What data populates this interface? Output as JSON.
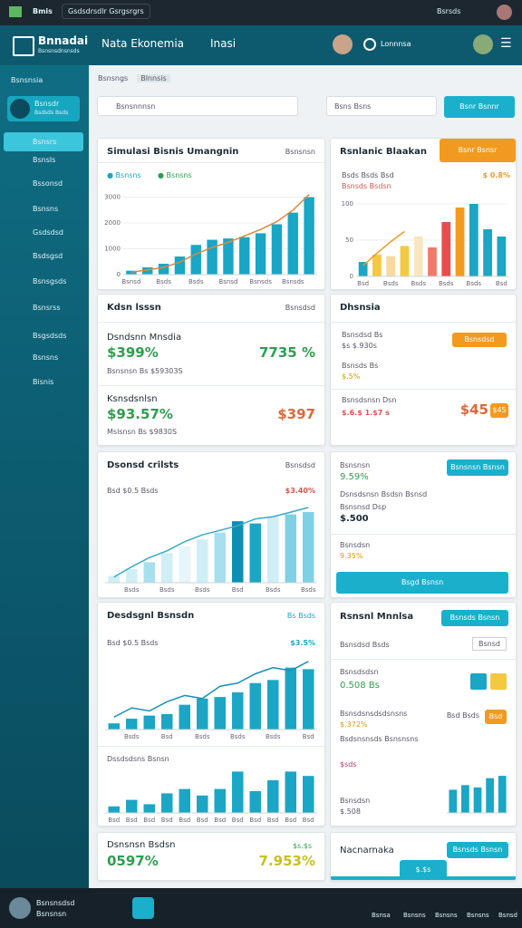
{
  "status_bar": {
    "app": "Bmis",
    "tab": "Gsdsdrsdlr Gsrgsrgrs",
    "user": "Bsrsds"
  },
  "header": {
    "logo_line1": "Bnnadai",
    "logo_line2": "Bsnsnsdnsnsds",
    "title": "Nata Ekonemia",
    "subtitle": "Inasi",
    "search_label": "Lonnnsa"
  },
  "sidebar": {
    "menu_title": "Bsnsnsia",
    "profile_name": "Bsnsdr",
    "profile_sub": "Bsdsds Bsds",
    "items": [
      "Bsnsrs",
      "Bsnsls",
      "Bssonsd",
      "Bsnsns",
      "Gsdsdsd",
      "Bsdsgsd",
      "Bsnsgsds",
      "Bsnsrss",
      "Bsgsdsds",
      "Bsnsns",
      "Bisnis"
    ]
  },
  "toolbar": {
    "crumbs": [
      "Bsnsngs",
      "Blnnsis"
    ],
    "search_placeholder": "Bsnsnnnsn",
    "filter_placeholder": "Bsns Bsns",
    "button": "Bsnr Bsnnr"
  },
  "cards": [
    {
      "title": "Simulasi Bisnis Umangnin",
      "action": "Bsnsnsn",
      "legend": [
        "Bsnsns",
        "Bsnsns"
      ],
      "chart": {
        "bars": [
          150,
          280,
          420,
          700,
          1150,
          1350,
          1400,
          1450,
          1600,
          1950,
          2400,
          3000
        ],
        "line": [
          100,
          180,
          280,
          480,
          800,
          1050,
          1250,
          1500,
          1750,
          2050,
          2500,
          3100
        ],
        "bar_color": "#1aa6c4",
        "line_color": "#e0883a",
        "ylim": [
          0,
          3300
        ],
        "yticks": [
          0,
          1000,
          2000,
          3000
        ],
        "categories": [
          "Bsnsd",
          null,
          "Bsds",
          null,
          "Bsds",
          null,
          "Bsnsd",
          null,
          "Bsnsds",
          null,
          "Bsnsds",
          null
        ]
      }
    },
    {
      "title": "Rsnlanic Blaakan",
      "badge": "Bsnr Bsnsr",
      "info": "Bsds Bsds Bsd",
      "info_value": "$ 0.8%",
      "sub": "Bsnsds Bsdsn",
      "chart": {
        "bars": [
          20,
          30,
          28,
          42,
          55,
          40,
          75,
          95,
          100,
          65,
          55
        ],
        "line": [
          15,
          32,
          48,
          62,
          null,
          null,
          null,
          null,
          null,
          null,
          null
        ],
        "bar_colors": [
          "#1aa6c4",
          "#f5c842",
          "#f8d9a0",
          "#f5c842",
          "#f8e6c0",
          "#f07a6a",
          "#e84c4c",
          "#f29a1f",
          "#1aa6c4",
          "#1aa6c4",
          "#1aa6c4"
        ],
        "line_color": "#f29a1f",
        "ylim": [
          0,
          110
        ],
        "yticks": [
          0,
          50,
          100
        ],
        "categories": [
          "Bsd",
          null,
          "Bsds",
          null,
          "Bsds",
          null,
          "Bsds",
          null,
          "Bsds",
          null,
          "Bsd"
        ]
      }
    },
    {
      "title": "Kdsn lsssn",
      "action": "Bsnsdsd",
      "blocks": [
        {
          "label": "Dsndsnn Mnsdia",
          "value": "$399%",
          "right": "7735 %",
          "sub": "Bsnsnsn Bs $59303S"
        },
        {
          "label": "Ksnsdsnlsn",
          "value": "$93.57%",
          "right": "$397",
          "sub": "Mslsnsn Bs $9830S"
        }
      ]
    },
    {
      "title": "Dhsnsia",
      "rows": [
        {
          "label": "Bsnsdsd Bs",
          "sub": "$s $.930s",
          "button": "Bsnsdsd"
        },
        {
          "label": "Bsnsds Bs",
          "sub": "$.5%"
        },
        {
          "label": "Bsnsdsnsn Dsn",
          "sub": "$.6.$ 1.$7 s",
          "value": "$45",
          "badge": "$45"
        }
      ]
    },
    {
      "title": "Dsonsd crilsts",
      "action": "Bsnsdsd",
      "annotation": "$3.40%",
      "note": "Bsd $0.5 Bsds",
      "chart": {
        "bars": [
          300,
          600,
          900,
          1300,
          1600,
          1900,
          2200,
          2700,
          2600,
          2900,
          3000,
          3100
        ],
        "line": [
          250,
          700,
          1100,
          1400,
          1800,
          2100,
          2300,
          2500,
          2800,
          2900,
          3100,
          3300
        ],
        "bar_colors": [
          "#cfeef5",
          "#cfeef5",
          "#a8dfec",
          "#cfeef5",
          "#e6f6fa",
          "#cfeef5",
          "#a8dfec",
          "#0c8fb0",
          "#1aa6c4",
          "#cfeef5",
          "#7fd0e4",
          "#7fd0e4"
        ],
        "line_color": "#3aa9c8",
        "ylim": [
          0,
          3500
        ],
        "categories": [
          null,
          "Bsds",
          null,
          "Bsds",
          null,
          "Bsds",
          null,
          "Bsd",
          null,
          "Bsds",
          null,
          "Bsds"
        ]
      }
    },
    {
      "title": "Bsnsnsn",
      "value": "9.59%",
      "button": "Bsnsnsn Bsnsn",
      "line1": "Dsnsdsnsn Bsdsn Bsnsd",
      "label2": "Bsnsnsd Dsp",
      "value2": "$.500",
      "label3": "Bsnsdsn",
      "value3": "9.35%",
      "big_button": "Bsgd Bsnsn"
    },
    {
      "title": "Desdsgnl Bsnsdn",
      "action": "Bs Bsds",
      "annotation": "$3.5%",
      "note": "Bsd $0.5 Bsds",
      "chart_title": "Dssdsdsns Bsnsn",
      "chart": {
        "bars": [
          200,
          350,
          450,
          500,
          800,
          1000,
          1050,
          1200,
          1500,
          1600,
          2000,
          1950
        ],
        "line": [
          400,
          700,
          600,
          900,
          1100,
          1000,
          1400,
          1500,
          1800,
          2000,
          1900,
          2200
        ],
        "bar_color": "#1aa6c4",
        "line_color": "#1a8fb8",
        "ylim": [
          0,
          2400
        ],
        "categories": [
          null,
          "Bsds",
          null,
          "Bsd",
          null,
          "Bsds",
          null,
          "Bsds",
          null,
          "Bsds",
          null,
          "Bsd"
        ]
      },
      "chart2": {
        "bars": [
          15,
          30,
          20,
          45,
          55,
          40,
          55,
          95,
          50,
          75,
          95,
          85
        ],
        "bar_color": "#1aa6c4",
        "ylim": [
          0,
          100
        ],
        "categories": [
          "Bsd",
          "Bsd",
          "Bsd",
          "Bsd",
          "Bsd",
          "Bsd",
          "Bsd",
          "Bsd",
          "Bsd",
          "Bsd",
          "Bsd",
          "Bsd"
        ]
      }
    },
    {
      "title": "Rsnsnl Mnnlsa",
      "button": "Bsnsds Bsnsn",
      "row_label": "Bsnsdsd Bsds",
      "chip": "Bsnsd",
      "rows": [
        {
          "label": "Bsnsdsdsn",
          "value": "0.508 Bs"
        },
        {
          "label": "Bsnsdsnsdsdsnsns",
          "value": "$.372%",
          "chip": "Bsd Bsds",
          "badge": "Bsd"
        },
        {
          "label": "Bsdsnsnsds Bsnsnsns",
          "sub": "$sds"
        },
        {
          "label": "Bsnsdsn",
          "value": "$.508"
        }
      ],
      "chart": {
        "bars": [
          50,
          60,
          55,
          75,
          80
        ],
        "bar_color": "#1aa6c4",
        "ylim": [
          0,
          90
        ]
      }
    },
    {
      "title": "Dsnsnsn Bsdsn",
      "value": "0597%",
      "annotation": "$s.$s",
      "right": "7.953%"
    },
    {
      "title": "Nacnarnaka",
      "button": "Bsnsds Bsnsn",
      "fab": "$.$s"
    }
  ],
  "bottom_bar": {
    "name": "Bsnsnsdsd",
    "sub": "Bsnsnsn",
    "items": [
      "Bsnsa",
      "Bsnsns",
      "Bsnsns",
      "Bsnsns",
      "Bsnsd"
    ]
  }
}
